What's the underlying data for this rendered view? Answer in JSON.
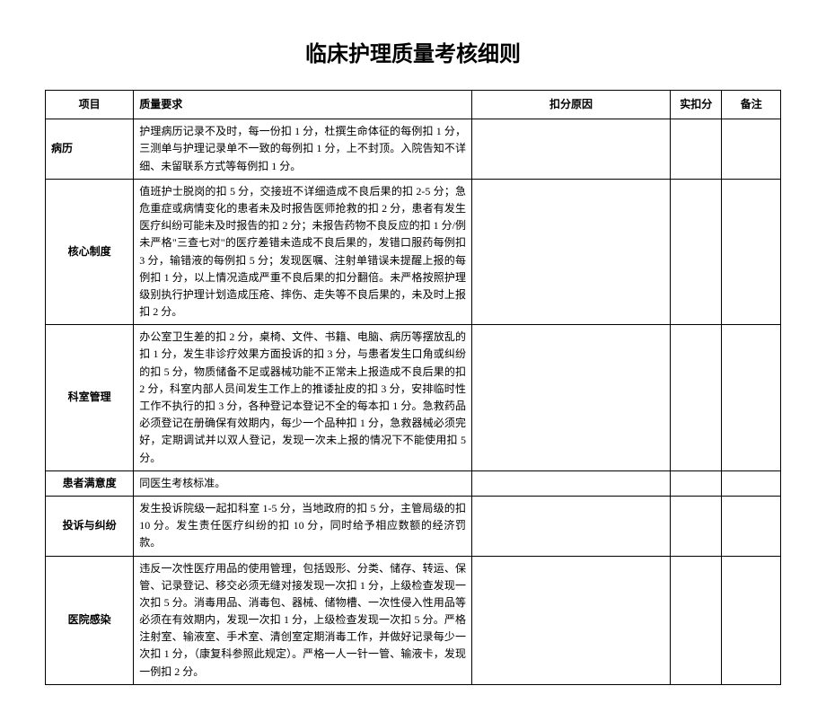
{
  "title": "临床护理质量考核细则",
  "headers": {
    "project": "项目",
    "requirement": "质量要求",
    "reason": "扣分原因",
    "score": "实扣分",
    "note": "备注"
  },
  "rows": [
    {
      "project": "病历",
      "requirement": "护理病历记录不及时，每一份扣 1 分，杜撰生命体征的每例扣 1 分，三测单与护理记录单不一致的每例扣 1 分，上不封顶。入院告知不详细、未留联系方式等每例扣 1 分。",
      "project_align": "left"
    },
    {
      "project": "核心制度",
      "requirement": "值班护士脱岗的扣 5 分，交接班不详细造成不良后果的扣 2-5 分；急危重症或病情变化的患者未及时报告医师抢救的扣 2 分，患者有发生医疗纠纷可能未及时报告的扣 2 分；未报告药物不良反应的扣 1 分/例 未严格\"三查七对\"的医疗差错未造成不良后果的，发错口服药每例扣 3 分，输错液的每例扣 5 分；发现医嘱、注射单错误未提醒上报的每例扣 1 分，以上情况造成严重不良后果的扣分翻倍。未严格按照护理级别执行护理计划造成压疮、摔伤、走失等不良后果的，未及时上报扣 2 分。",
      "project_align": "center"
    },
    {
      "project": "科室管理",
      "requirement": "办公室卫生差的扣 2 分，桌椅、文件、书籍、电脑、病历等摆放乱的扣 1 分，发生非诊疗效果方面投诉的扣 3 分，与患者发生口角或纠纷的扣 5 分，物质储备不足或器械功能不正常未上报造成不良后果的扣 2 分，科室内部人员间发生工作上的推诿扯皮的扣 3 分，安排临时性工作不执行的扣 3 分，各种登记本登记不全的每本扣 1 分。急救药品必须登记在册确保有效期内，每少一个品种扣 1 分，急救器械必须完好，定期调试并以双人登记，发现一次未上报的情况下不能使用扣 5 分。",
      "project_align": "center"
    },
    {
      "project": "患者满意度",
      "requirement": "同医生考核标准。",
      "project_align": "center"
    },
    {
      "project": "投诉与纠纷",
      "requirement": "发生投诉院级一起扣科室 1-5 分，当地政府的扣 5 分，主管局级的扣 10 分。发生责任医疗纠纷的扣 10 分，同时给予相应数额的经济罚款。",
      "project_align": "center"
    },
    {
      "project": "医院感染",
      "requirement": "违反一次性医疗用品的使用管理，包括毁形、分类、储存、转运、保管、记录登记、移交必须无缝对接发现一次扣 1 分，上级检查发现一次扣 5 分。消毒用品、消毒包、器械、储物槽、一次性侵入性用品等必须在有效期内，发现一次扣 1 分，上级检查发现一次扣 5 分。严格注射室、输液室、手术室、清创室定期消毒工作，并做好记录每少一次扣 1 分，（康复科参照此规定）。严格一人一针一管、输液卡，发现一例扣 2 分。",
      "project_align": "center"
    }
  ]
}
